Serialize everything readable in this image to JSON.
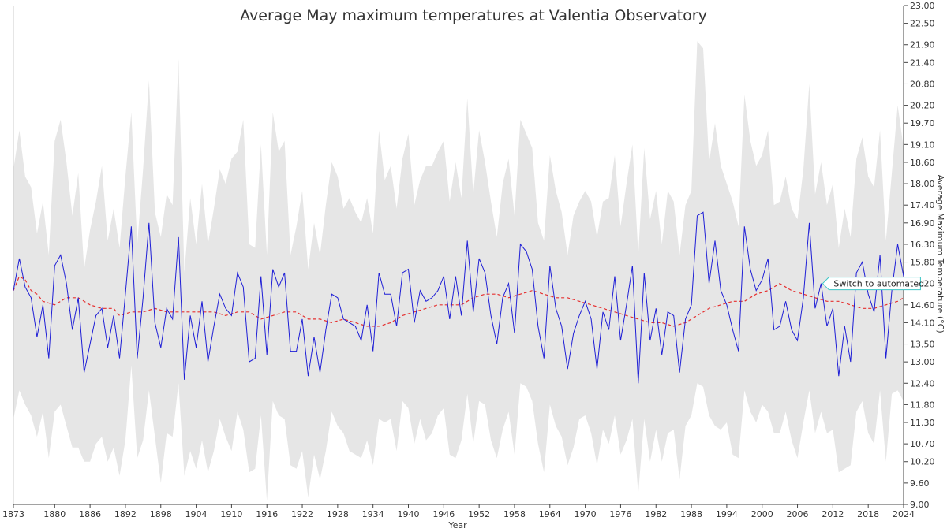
{
  "chart_data": {
    "type": "line",
    "title": "Average May maximum temperatures at Valentia Observatory",
    "xlabel": "Year",
    "ylabel": "Average Maximum Temperature (°C)",
    "xlim": [
      1873,
      2024
    ],
    "ylim": [
      9.0,
      23.0
    ],
    "x_ticks": [
      "1873",
      "1880",
      "1886",
      "1892",
      "1898",
      "1904",
      "1910",
      "1916",
      "1922",
      "1928",
      "1934",
      "1940",
      "1946",
      "1952",
      "1958",
      "1964",
      "1970",
      "1976",
      "1982",
      "1988",
      "1994",
      "2000",
      "2006",
      "2012",
      "2018",
      "2024"
    ],
    "y_ticks": [
      "9.00",
      "9.60",
      "10.20",
      "10.70",
      "11.30",
      "11.80",
      "12.40",
      "13.00",
      "13.50",
      "14.10",
      "14.60",
      "15.20",
      "15.80",
      "16.30",
      "16.90",
      "17.40",
      "18.00",
      "18.60",
      "19.10",
      "19.70",
      "20.20",
      "20.80",
      "21.40",
      "21.90",
      "22.50",
      "23.00"
    ],
    "y_axis_position": "right",
    "grid": false,
    "legend": "none",
    "colors": {
      "series": "#1f1fd6",
      "smoothed": "#e53030",
      "band": "#e6e6e6",
      "annotation_border": "#3cc6c6",
      "axis": "#444444",
      "text": "#333333"
    },
    "annotation": {
      "text": "Switch to automated",
      "x": 2010,
      "y": 15.2
    },
    "series": [
      {
        "kind": "line",
        "x": [
          1873,
          1874,
          1875,
          1876,
          1877,
          1878,
          1879,
          1880,
          1881,
          1882,
          1883,
          1884,
          1885,
          1886,
          1887,
          1888,
          1889,
          1890,
          1891,
          1892,
          1893,
          1894,
          1895,
          1896,
          1897,
          1898,
          1899,
          1900,
          1901,
          1902,
          1903,
          1904,
          1905,
          1906,
          1907,
          1908,
          1909,
          1910,
          1911,
          1912,
          1913,
          1914,
          1915,
          1916,
          1917,
          1918,
          1919,
          1920,
          1921,
          1922,
          1923,
          1924,
          1925,
          1926,
          1927,
          1928,
          1929,
          1930,
          1931,
          1932,
          1933,
          1934,
          1935,
          1936,
          1937,
          1938,
          1939,
          1940,
          1941,
          1942,
          1943,
          1944,
          1945,
          1946,
          1947,
          1948,
          1949,
          1950,
          1951,
          1952,
          1953,
          1954,
          1955,
          1956,
          1957,
          1958,
          1959,
          1960,
          1961,
          1962,
          1963,
          1964,
          1965,
          1966,
          1967,
          1968,
          1969,
          1970,
          1971,
          1972,
          1973,
          1974,
          1975,
          1976,
          1977,
          1978,
          1979,
          1980,
          1981,
          1982,
          1983,
          1984,
          1985,
          1986,
          1987,
          1988,
          1989,
          1990,
          1991,
          1992,
          1993,
          1994,
          1995,
          1996,
          1997,
          1998,
          1999,
          2000,
          2001,
          2002,
          2003,
          2004,
          2005,
          2006,
          2007,
          2008,
          2009,
          2010,
          2011,
          2012,
          2013,
          2014,
          2015,
          2016,
          2017,
          2018,
          2019,
          2020,
          2021,
          2022,
          2023,
          2024
        ],
        "values": [
          15.0,
          15.9,
          15.1,
          14.8,
          13.7,
          14.6,
          13.1,
          15.7,
          16.0,
          15.2,
          13.9,
          14.8,
          12.7,
          13.5,
          14.3,
          14.5,
          13.4,
          14.3,
          13.1,
          14.9,
          16.8,
          13.1,
          14.8,
          16.9,
          14.1,
          13.4,
          14.5,
          14.2,
          16.5,
          12.5,
          14.3,
          13.4,
          14.7,
          13.0,
          14.0,
          14.9,
          14.5,
          14.3,
          15.5,
          15.1,
          13.0,
          13.1,
          15.4,
          13.2,
          15.6,
          15.1,
          15.5,
          13.3,
          13.3,
          14.2,
          12.6,
          13.7,
          12.7,
          13.9,
          14.9,
          14.8,
          14.2,
          14.1,
          14.0,
          13.6,
          14.6,
          13.3,
          15.5,
          14.9,
          14.9,
          14.0,
          15.5,
          15.6,
          14.1,
          15.0,
          14.7,
          14.8,
          15.0,
          15.4,
          14.2,
          15.4,
          14.3,
          16.4,
          14.4,
          15.9,
          15.5,
          14.3,
          13.5,
          14.8,
          15.2,
          13.8,
          16.3,
          16.1,
          15.6,
          14.0,
          13.1,
          15.7,
          14.5,
          14.0,
          12.8,
          13.8,
          14.3,
          14.7,
          14.2,
          12.8,
          14.4,
          13.9,
          15.4,
          13.6,
          14.6,
          15.7,
          12.4,
          15.5,
          13.6,
          14.5,
          13.2,
          14.4,
          14.3,
          12.7,
          14.2,
          14.6,
          17.1,
          17.2,
          15.2,
          16.4,
          15.0,
          14.6,
          13.9,
          13.3,
          16.8,
          15.6,
          15.0,
          15.3,
          15.9,
          13.9,
          14.0,
          14.7,
          13.9,
          13.6,
          14.8,
          16.9,
          14.5,
          15.2,
          14.0,
          14.5,
          12.6,
          14.0,
          13.0,
          15.5,
          15.8,
          14.9,
          14.4,
          16.0,
          13.1,
          15.0,
          16.3,
          15.4
        ]
      },
      {
        "kind": "dashed-smoothed",
        "x": [
          1873,
          1874,
          1875,
          1876,
          1877,
          1878,
          1880,
          1882,
          1884,
          1886,
          1888,
          1890,
          1891,
          1893,
          1895,
          1897,
          1899,
          1901,
          1903,
          1905,
          1907,
          1909,
          1911,
          1913,
          1915,
          1917,
          1919,
          1921,
          1923,
          1925,
          1927,
          1929,
          1931,
          1933,
          1935,
          1937,
          1939,
          1941,
          1943,
          1945,
          1947,
          1949,
          1951,
          1953,
          1955,
          1957,
          1959,
          1961,
          1963,
          1965,
          1967,
          1969,
          1971,
          1973,
          1975,
          1977,
          1979,
          1981,
          1983,
          1985,
          1987,
          1989,
          1991,
          1993,
          1995,
          1997,
          1999,
          2001,
          2003,
          2005,
          2007,
          2009,
          2011,
          2013,
          2015,
          2017,
          2019,
          2021,
          2023,
          2024
        ],
        "values": [
          15.0,
          15.4,
          15.3,
          15.0,
          14.9,
          14.7,
          14.6,
          14.8,
          14.8,
          14.6,
          14.5,
          14.5,
          14.3,
          14.4,
          14.4,
          14.5,
          14.4,
          14.4,
          14.4,
          14.4,
          14.4,
          14.3,
          14.4,
          14.4,
          14.2,
          14.3,
          14.4,
          14.4,
          14.2,
          14.2,
          14.1,
          14.2,
          14.1,
          14.0,
          14.0,
          14.1,
          14.3,
          14.4,
          14.5,
          14.6,
          14.6,
          14.6,
          14.8,
          14.9,
          14.9,
          14.8,
          14.9,
          15.0,
          14.9,
          14.8,
          14.8,
          14.7,
          14.6,
          14.5,
          14.4,
          14.3,
          14.2,
          14.1,
          14.1,
          14.0,
          14.1,
          14.3,
          14.5,
          14.6,
          14.7,
          14.7,
          14.9,
          15.0,
          15.2,
          15.0,
          14.9,
          14.8,
          14.7,
          14.7,
          14.6,
          14.5,
          14.5,
          14.6,
          14.7,
          14.8
        ]
      },
      {
        "kind": "band-upper",
        "x": [
          1873,
          1874,
          1875,
          1876,
          1877,
          1878,
          1879,
          1880,
          1881,
          1882,
          1883,
          1884,
          1885,
          1886,
          1887,
          1888,
          1889,
          1890,
          1891,
          1892,
          1893,
          1894,
          1895,
          1896,
          1897,
          1898,
          1899,
          1900,
          1901,
          1902,
          1903,
          1904,
          1905,
          1906,
          1907,
          1908,
          1909,
          1910,
          1911,
          1912,
          1913,
          1914,
          1915,
          1916,
          1917,
          1918,
          1919,
          1920,
          1921,
          1922,
          1923,
          1924,
          1925,
          1926,
          1927,
          1928,
          1929,
          1930,
          1931,
          1932,
          1933,
          1934,
          1935,
          1936,
          1937,
          1938,
          1939,
          1940,
          1941,
          1942,
          1943,
          1944,
          1945,
          1946,
          1947,
          1948,
          1949,
          1950,
          1951,
          1952,
          1953,
          1954,
          1955,
          1956,
          1957,
          1958,
          1959,
          1960,
          1961,
          1962,
          1963,
          1964,
          1965,
          1966,
          1967,
          1968,
          1969,
          1970,
          1971,
          1972,
          1973,
          1974,
          1975,
          1976,
          1977,
          1978,
          1979,
          1980,
          1981,
          1982,
          1983,
          1984,
          1985,
          1986,
          1987,
          1988,
          1989,
          1990,
          1991,
          1992,
          1993,
          1994,
          1995,
          1996,
          1997,
          1998,
          1999,
          2000,
          2001,
          2002,
          2003,
          2004,
          2005,
          2006,
          2007,
          2008,
          2009,
          2010,
          2011,
          2012,
          2013,
          2014,
          2015,
          2016,
          2017,
          2018,
          2019,
          2020,
          2021,
          2022,
          2023,
          2024
        ],
        "values": [
          18.4,
          19.5,
          18.2,
          17.9,
          16.6,
          17.5,
          16.0,
          19.2,
          19.8,
          18.6,
          17.1,
          18.3,
          15.6,
          16.7,
          17.5,
          18.5,
          16.4,
          17.3,
          16.2,
          18.2,
          20.0,
          16.3,
          18.4,
          20.9,
          17.2,
          16.5,
          17.7,
          17.4,
          21.5,
          15.5,
          17.6,
          16.3,
          18.0,
          16.3,
          17.3,
          18.4,
          18.0,
          18.7,
          18.9,
          19.8,
          16.3,
          16.2,
          19.1,
          16.0,
          20.0,
          18.9,
          19.2,
          16.0,
          16.8,
          17.8,
          15.6,
          16.9,
          16.0,
          17.4,
          18.6,
          18.2,
          17.3,
          17.6,
          17.2,
          16.9,
          17.6,
          16.6,
          19.5,
          18.1,
          18.5,
          17.3,
          18.7,
          19.4,
          17.4,
          18.1,
          18.5,
          18.5,
          18.9,
          19.2,
          17.5,
          18.6,
          17.6,
          20.4,
          17.7,
          19.5,
          18.6,
          17.5,
          16.5,
          18.0,
          18.7,
          17.1,
          19.8,
          19.4,
          19.0,
          16.9,
          16.4,
          18.8,
          17.8,
          17.2,
          16.0,
          17.1,
          17.5,
          17.8,
          17.5,
          16.5,
          17.5,
          17.6,
          18.8,
          16.8,
          18.0,
          19.1,
          16.0,
          19.0,
          17.0,
          17.8,
          16.3,
          17.8,
          17.5,
          16.0,
          17.4,
          17.8,
          22.0,
          21.8,
          18.6,
          19.7,
          18.5,
          18.0,
          17.5,
          16.8,
          20.5,
          19.2,
          18.5,
          18.8,
          19.5,
          17.4,
          17.5,
          18.2,
          17.3,
          17.0,
          18.4,
          20.8,
          17.7,
          18.6,
          17.4,
          18.0,
          16.2,
          17.3,
          16.5,
          18.7,
          19.3,
          18.2,
          17.9,
          19.5,
          16.4,
          18.3,
          20.2,
          19.0
        ]
      },
      {
        "kind": "band-lower",
        "x": [
          1873,
          1874,
          1875,
          1876,
          1877,
          1878,
          1879,
          1880,
          1881,
          1882,
          1883,
          1884,
          1885,
          1886,
          1887,
          1888,
          1889,
          1890,
          1891,
          1892,
          1893,
          1894,
          1895,
          1896,
          1897,
          1898,
          1899,
          1900,
          1901,
          1902,
          1903,
          1904,
          1905,
          1906,
          1907,
          1908,
          1909,
          1910,
          1911,
          1912,
          1913,
          1914,
          1915,
          1916,
          1917,
          1918,
          1919,
          1920,
          1921,
          1922,
          1923,
          1924,
          1925,
          1926,
          1927,
          1928,
          1929,
          1930,
          1931,
          1932,
          1933,
          1934,
          1935,
          1936,
          1937,
          1938,
          1939,
          1940,
          1941,
          1942,
          1943,
          1944,
          1945,
          1946,
          1947,
          1948,
          1949,
          1950,
          1951,
          1952,
          1953,
          1954,
          1955,
          1956,
          1957,
          1958,
          1959,
          1960,
          1961,
          1962,
          1963,
          1964,
          1965,
          1966,
          1967,
          1968,
          1969,
          1970,
          1971,
          1972,
          1973,
          1974,
          1975,
          1976,
          1977,
          1978,
          1979,
          1980,
          1981,
          1982,
          1983,
          1984,
          1985,
          1986,
          1987,
          1988,
          1989,
          1990,
          1991,
          1992,
          1993,
          1994,
          1995,
          1996,
          1997,
          1998,
          1999,
          2000,
          2001,
          2002,
          2003,
          2004,
          2005,
          2006,
          2007,
          2008,
          2009,
          2010,
          2011,
          2012,
          2013,
          2014,
          2015,
          2016,
          2017,
          2018,
          2019,
          2020,
          2021,
          2022,
          2023,
          2024
        ],
        "values": [
          11.4,
          12.2,
          11.8,
          11.5,
          10.9,
          11.6,
          10.3,
          11.6,
          11.8,
          11.2,
          10.6,
          10.6,
          10.2,
          10.2,
          10.7,
          10.9,
          10.2,
          10.6,
          9.8,
          10.8,
          12.9,
          10.3,
          10.8,
          12.2,
          10.9,
          9.6,
          11.0,
          10.9,
          12.4,
          9.8,
          10.5,
          10.0,
          10.8,
          9.9,
          10.5,
          11.4,
          10.9,
          10.5,
          11.6,
          11.1,
          9.9,
          10.0,
          11.5,
          9.1,
          11.9,
          11.5,
          11.4,
          10.1,
          10.0,
          10.5,
          9.2,
          10.4,
          9.7,
          10.5,
          11.6,
          11.2,
          11.0,
          10.5,
          10.4,
          10.3,
          10.8,
          10.1,
          11.4,
          11.3,
          11.4,
          10.5,
          11.9,
          11.7,
          10.7,
          11.4,
          10.8,
          11.0,
          11.5,
          11.7,
          10.4,
          10.3,
          10.8,
          12.1,
          10.7,
          11.9,
          11.8,
          10.8,
          10.3,
          11.1,
          11.6,
          10.4,
          12.4,
          12.3,
          11.9,
          10.7,
          9.9,
          11.8,
          11.2,
          10.9,
          10.1,
          10.6,
          11.4,
          11.5,
          11.0,
          10.1,
          11.1,
          10.7,
          11.5,
          10.4,
          10.8,
          11.4,
          9.3,
          11.4,
          10.2,
          11.1,
          10.2,
          11.0,
          11.1,
          9.7,
          11.2,
          11.5,
          12.4,
          12.3,
          11.5,
          11.2,
          11.1,
          11.3,
          10.4,
          10.3,
          12.2,
          11.6,
          11.3,
          11.8,
          11.6,
          11.0,
          11.0,
          11.6,
          10.8,
          10.3,
          11.3,
          12.2,
          11.0,
          11.6,
          11.0,
          11.1,
          9.9,
          10.0,
          10.1,
          11.6,
          11.9,
          11.0,
          10.7,
          12.2,
          10.2,
          12.1,
          12.2,
          11.9
        ]
      }
    ]
  }
}
